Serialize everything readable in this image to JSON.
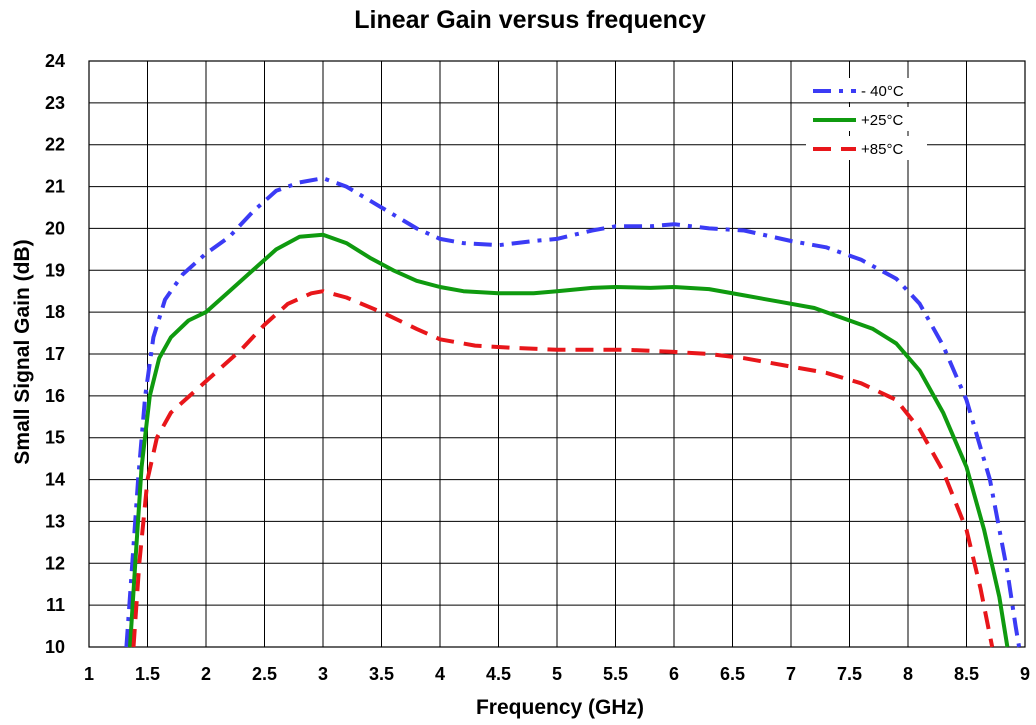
{
  "chart_data": {
    "type": "line",
    "title": "Linear Gain versus frequency",
    "xlabel": "Frequency (GHz)",
    "ylabel": "Small Signal Gain (dB)",
    "xlim": [
      1,
      9
    ],
    "ylim": [
      10,
      24
    ],
    "x_ticks": [
      "1",
      "1.5",
      "2",
      "2.5",
      "3",
      "3.5",
      "4",
      "4.5",
      "5",
      "5.5",
      "6",
      "6.5",
      "7",
      "7.5",
      "8",
      "8.5",
      "9"
    ],
    "y_ticks": [
      "10",
      "11",
      "12",
      "13",
      "14",
      "15",
      "16",
      "17",
      "18",
      "19",
      "20",
      "21",
      "22",
      "23",
      "24"
    ],
    "grid": true,
    "legend_position": "top-right",
    "series": [
      {
        "name": "- 40°C",
        "color": "#3b3bf5",
        "style": "dash-dot",
        "points": [
          [
            1.32,
            10.0
          ],
          [
            1.37,
            12.0
          ],
          [
            1.42,
            14.0
          ],
          [
            1.48,
            16.0
          ],
          [
            1.55,
            17.4
          ],
          [
            1.65,
            18.3
          ],
          [
            1.8,
            18.9
          ],
          [
            2.0,
            19.4
          ],
          [
            2.2,
            19.8
          ],
          [
            2.4,
            20.4
          ],
          [
            2.6,
            20.9
          ],
          [
            2.8,
            21.1
          ],
          [
            3.0,
            21.2
          ],
          [
            3.2,
            21.0
          ],
          [
            3.5,
            20.5
          ],
          [
            3.8,
            20.0
          ],
          [
            4.0,
            19.75
          ],
          [
            4.2,
            19.65
          ],
          [
            4.5,
            19.6
          ],
          [
            4.8,
            19.7
          ],
          [
            5.0,
            19.75
          ],
          [
            5.3,
            19.95
          ],
          [
            5.5,
            20.05
          ],
          [
            5.8,
            20.05
          ],
          [
            6.0,
            20.1
          ],
          [
            6.3,
            20.0
          ],
          [
            6.6,
            19.95
          ],
          [
            7.0,
            19.7
          ],
          [
            7.3,
            19.55
          ],
          [
            7.6,
            19.25
          ],
          [
            7.9,
            18.8
          ],
          [
            8.1,
            18.2
          ],
          [
            8.3,
            17.2
          ],
          [
            8.5,
            15.9
          ],
          [
            8.7,
            14.0
          ],
          [
            8.85,
            11.8
          ],
          [
            8.92,
            10.5
          ],
          [
            8.95,
            10.0
          ]
        ]
      },
      {
        "name": "+25°C",
        "color": "#0f9a0f",
        "style": "solid",
        "points": [
          [
            1.35,
            10.0
          ],
          [
            1.4,
            12.2
          ],
          [
            1.45,
            14.3
          ],
          [
            1.52,
            16.0
          ],
          [
            1.6,
            16.9
          ],
          [
            1.7,
            17.4
          ],
          [
            1.85,
            17.8
          ],
          [
            2.0,
            18.0
          ],
          [
            2.2,
            18.5
          ],
          [
            2.4,
            19.0
          ],
          [
            2.6,
            19.5
          ],
          [
            2.8,
            19.8
          ],
          [
            3.0,
            19.85
          ],
          [
            3.2,
            19.65
          ],
          [
            3.4,
            19.3
          ],
          [
            3.6,
            19.0
          ],
          [
            3.8,
            18.75
          ],
          [
            4.0,
            18.6
          ],
          [
            4.2,
            18.5
          ],
          [
            4.5,
            18.45
          ],
          [
            4.8,
            18.45
          ],
          [
            5.0,
            18.5
          ],
          [
            5.3,
            18.58
          ],
          [
            5.5,
            18.6
          ],
          [
            5.8,
            18.58
          ],
          [
            6.0,
            18.6
          ],
          [
            6.3,
            18.55
          ],
          [
            6.6,
            18.4
          ],
          [
            6.9,
            18.25
          ],
          [
            7.2,
            18.1
          ],
          [
            7.5,
            17.8
          ],
          [
            7.7,
            17.6
          ],
          [
            7.9,
            17.25
          ],
          [
            8.1,
            16.6
          ],
          [
            8.3,
            15.6
          ],
          [
            8.5,
            14.3
          ],
          [
            8.65,
            12.8
          ],
          [
            8.78,
            11.2
          ],
          [
            8.85,
            10.0
          ]
        ]
      },
      {
        "name": "+85°C",
        "color": "#e8161a",
        "style": "dash",
        "points": [
          [
            1.38,
            10.0
          ],
          [
            1.43,
            12.0
          ],
          [
            1.5,
            14.0
          ],
          [
            1.58,
            15.0
          ],
          [
            1.7,
            15.6
          ],
          [
            1.9,
            16.1
          ],
          [
            2.1,
            16.6
          ],
          [
            2.3,
            17.1
          ],
          [
            2.5,
            17.7
          ],
          [
            2.7,
            18.2
          ],
          [
            2.9,
            18.45
          ],
          [
            3.0,
            18.5
          ],
          [
            3.2,
            18.35
          ],
          [
            3.5,
            18.0
          ],
          [
            3.8,
            17.6
          ],
          [
            4.0,
            17.35
          ],
          [
            4.3,
            17.2
          ],
          [
            4.6,
            17.15
          ],
          [
            5.0,
            17.1
          ],
          [
            5.3,
            17.1
          ],
          [
            5.6,
            17.1
          ],
          [
            6.0,
            17.05
          ],
          [
            6.3,
            17.0
          ],
          [
            6.6,
            16.9
          ],
          [
            7.0,
            16.7
          ],
          [
            7.3,
            16.55
          ],
          [
            7.6,
            16.3
          ],
          [
            7.9,
            15.9
          ],
          [
            8.1,
            15.2
          ],
          [
            8.3,
            14.2
          ],
          [
            8.5,
            12.8
          ],
          [
            8.62,
            11.4
          ],
          [
            8.72,
            10.0
          ]
        ]
      }
    ]
  }
}
